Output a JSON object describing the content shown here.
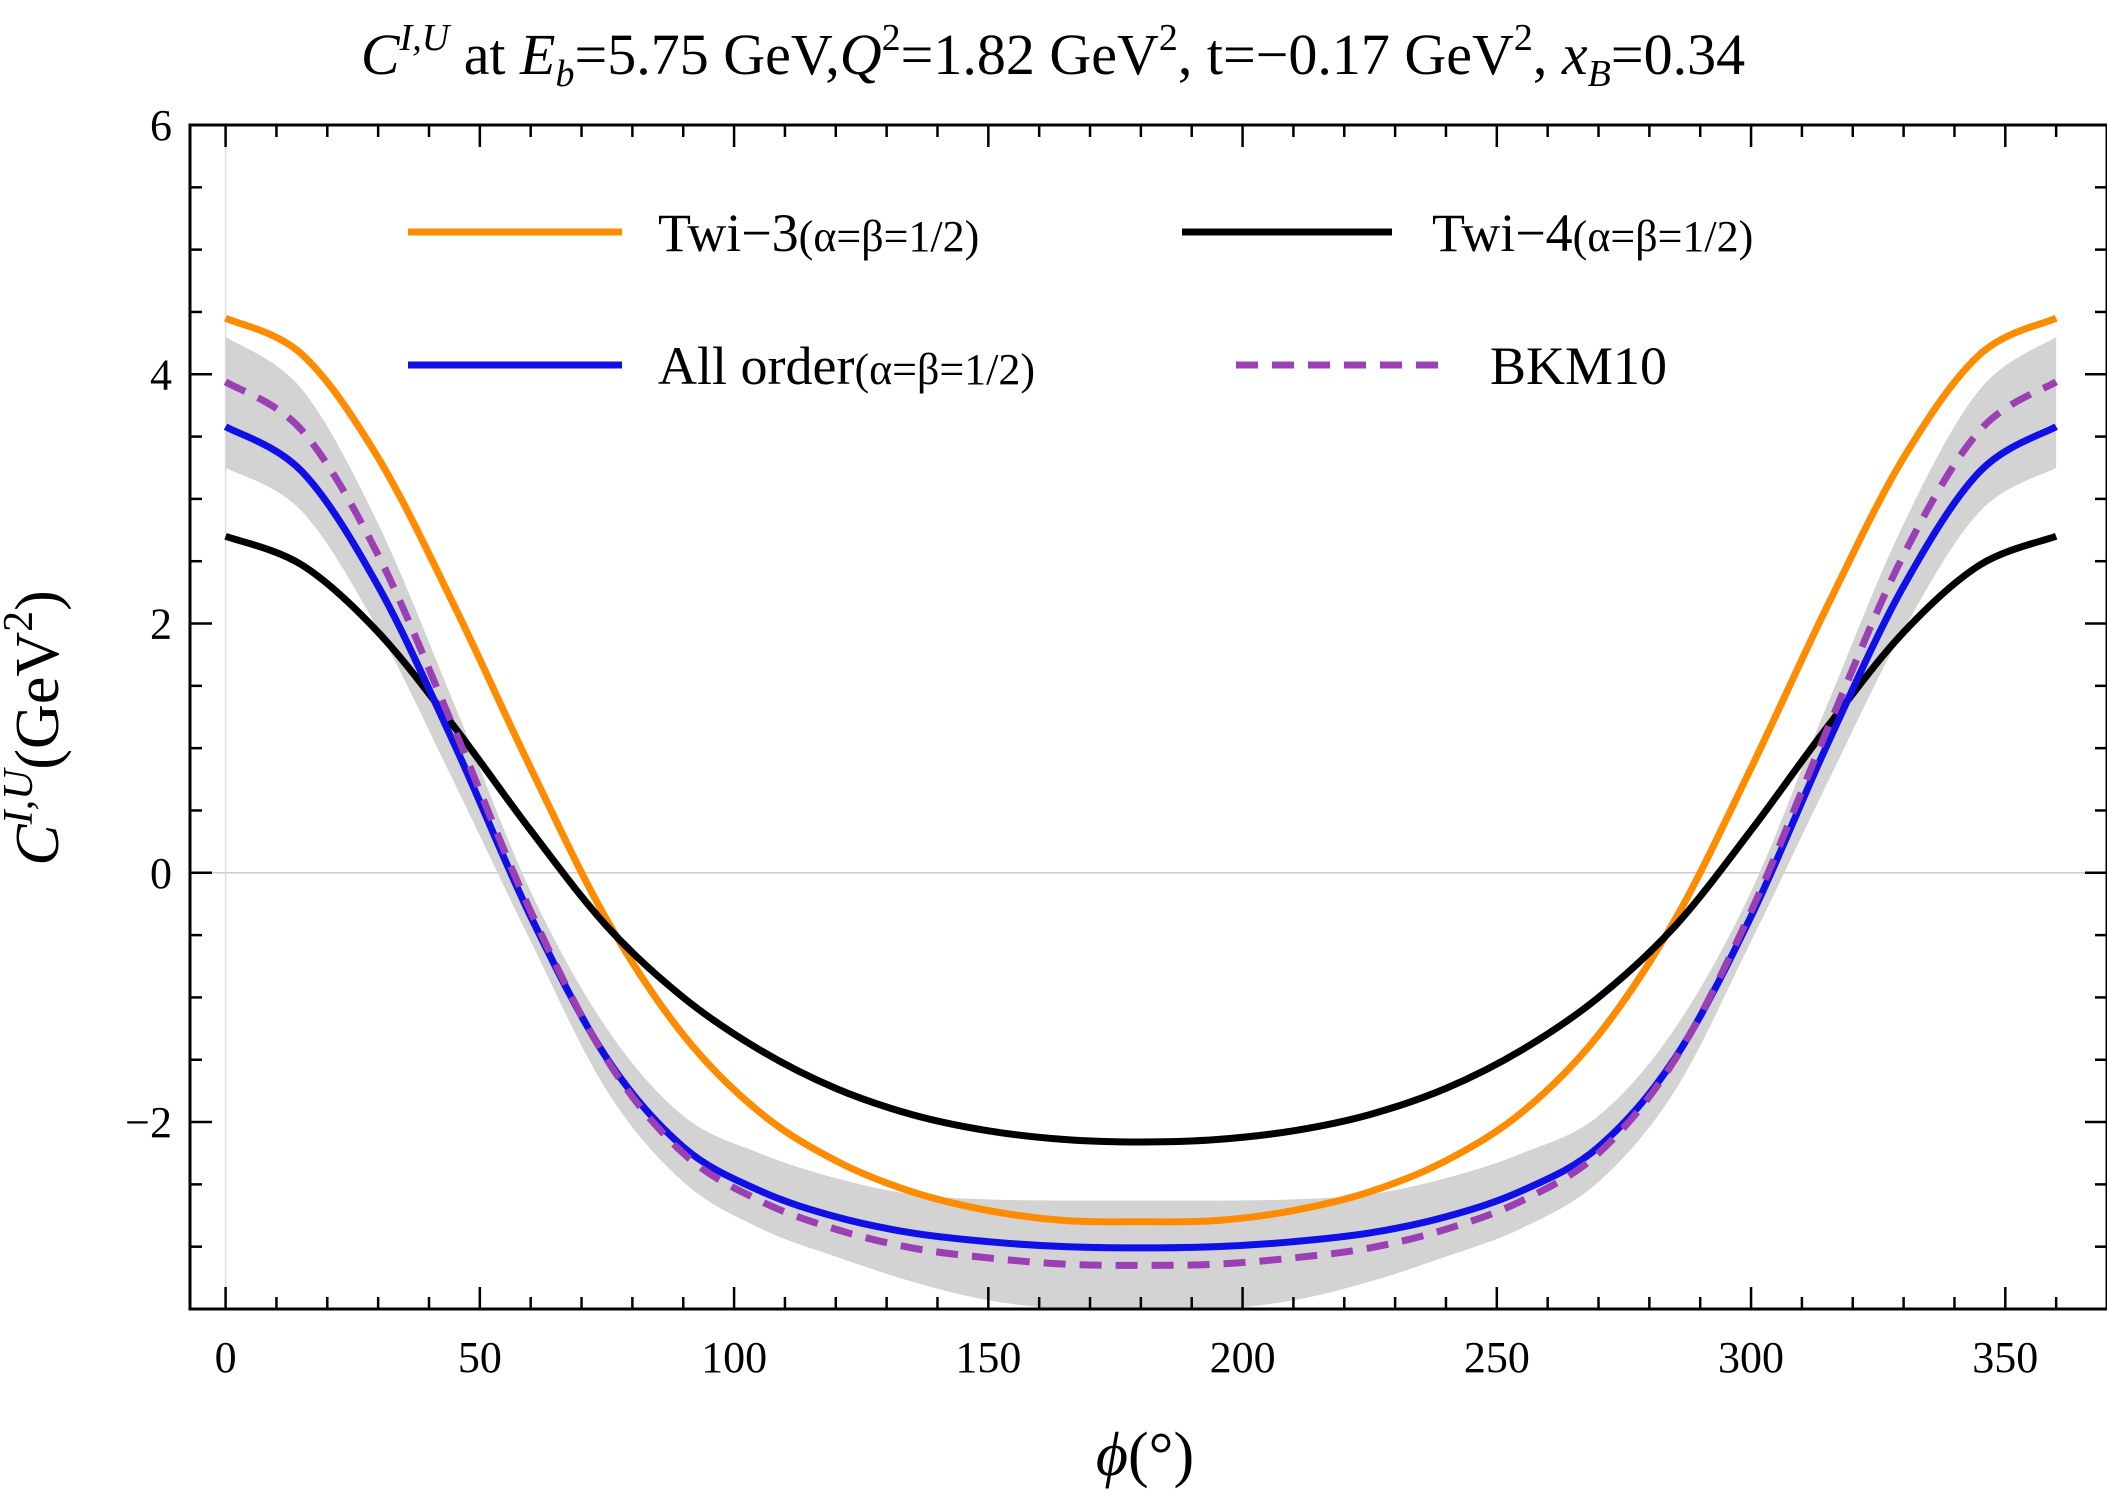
{
  "chart_data": {
    "type": "line",
    "title": "C^{I,U} at E_b=5.75 GeV,Q^2=1.82 GeV^2, t=−0.17 GeV^2, x_B=0.34",
    "title_parts": {
      "C": "C",
      "sup_IU": "I,U",
      "at": " at ",
      "E": "E",
      "sub_b": "b",
      "eb_val": "=5.75 GeV,",
      "Q": "Q",
      "sup_2": "2",
      "q2_val": "=1.82 GeV",
      "t_val": ", t=−0.17 GeV",
      "comma_sp": ", ",
      "x": "x",
      "sub_B": "B",
      "xb_val": "=0.34"
    },
    "xlabel": "ϕ(°)",
    "xlabel_parts": {
      "phi": "ϕ",
      "deg": "(°)"
    },
    "ylabel": "C^{I,U}(GeV^2)",
    "ylabel_parts": {
      "C": "C",
      "sup": "I,U",
      "unit": "(GeV",
      "two": "2",
      "close": ")"
    },
    "xlim": [
      -7,
      370
    ],
    "ylim": [
      -3.5,
      6
    ],
    "x_ticks": [
      0,
      50,
      100,
      150,
      200,
      250,
      300,
      350
    ],
    "y_ticks": [
      -2,
      0,
      2,
      4,
      6
    ],
    "x_tick_labels": [
      "0",
      "50",
      "100",
      "150",
      "200",
      "250",
      "300",
      "350"
    ],
    "y_tick_labels": [
      "−2",
      "0",
      "2",
      "4",
      "6"
    ],
    "x": [
      0,
      15,
      30,
      45,
      60,
      75,
      90,
      105,
      120,
      135,
      150,
      165,
      180,
      195,
      210,
      225,
      240,
      255,
      270,
      285,
      300,
      315,
      330,
      345,
      360
    ],
    "series": [
      {
        "name": "Twi−3(α=β=1/2)",
        "label_main": "Twi−3",
        "label_sub": "(α=β=1/2)",
        "color": "#ff8c00",
        "style": "solid",
        "values": [
          4.45,
          4.16,
          3.33,
          2.14,
          0.84,
          -0.38,
          -1.3,
          -1.92,
          -2.31,
          -2.56,
          -2.71,
          -2.79,
          -2.8,
          -2.79,
          -2.71,
          -2.56,
          -2.31,
          -1.92,
          -1.3,
          -0.38,
          0.84,
          2.14,
          3.33,
          4.16,
          4.45
        ]
      },
      {
        "name": "Twi−4(α=β=1/2)",
        "label_main": "Twi−4",
        "label_sub": "(α=β=1/2)",
        "color": "#000000",
        "style": "solid",
        "values": [
          2.7,
          2.47,
          1.93,
          1.17,
          0.34,
          -0.43,
          -1.0,
          -1.42,
          -1.73,
          -1.94,
          -2.07,
          -2.14,
          -2.16,
          -2.14,
          -2.07,
          -1.94,
          -1.73,
          -1.42,
          -1.0,
          -0.43,
          0.34,
          1.17,
          1.93,
          2.47,
          2.7
        ]
      },
      {
        "name": "All order(α=β=1/2)",
        "label_main": "All order",
        "label_sub": "(α=β=1/2)",
        "color": "#1010e6",
        "style": "solid",
        "values": [
          3.58,
          3.22,
          2.3,
          1.03,
          -0.35,
          -1.49,
          -2.2,
          -2.55,
          -2.76,
          -2.89,
          -2.96,
          -3.0,
          -3.01,
          -3.0,
          -2.96,
          -2.89,
          -2.76,
          -2.55,
          -2.2,
          -1.49,
          -0.35,
          1.03,
          2.3,
          3.22,
          3.58
        ]
      },
      {
        "name": "BKM10",
        "label_main": "BKM10",
        "label_sub": "",
        "color": "#9b3fb5",
        "style": "dashed",
        "values": [
          3.94,
          3.55,
          2.55,
          1.15,
          -0.31,
          -1.5,
          -2.25,
          -2.63,
          -2.86,
          -3.01,
          -3.09,
          -3.14,
          -3.15,
          -3.14,
          -3.09,
          -3.01,
          -2.86,
          -2.63,
          -2.25,
          -1.5,
          -0.31,
          1.15,
          2.55,
          3.55,
          3.94
        ]
      }
    ],
    "uncertainty_band": {
      "color": "#d3d3d3",
      "upper": [
        4.3,
        3.88,
        2.8,
        1.35,
        -0.15,
        -1.25,
        -1.95,
        -2.25,
        -2.45,
        -2.58,
        -2.62,
        -2.63,
        -2.63,
        -2.63,
        -2.62,
        -2.58,
        -2.45,
        -2.25,
        -1.95,
        -1.25,
        -0.15,
        1.35,
        2.8,
        3.88,
        4.3
      ],
      "lower": [
        3.25,
        2.9,
        1.95,
        0.72,
        -0.55,
        -1.75,
        -2.48,
        -2.85,
        -3.08,
        -3.28,
        -3.43,
        -3.5,
        -3.5,
        -3.5,
        -3.43,
        -3.28,
        -3.08,
        -2.85,
        -2.48,
        -1.75,
        -0.55,
        0.72,
        1.95,
        2.9,
        3.25
      ]
    },
    "legend_position": "top"
  }
}
